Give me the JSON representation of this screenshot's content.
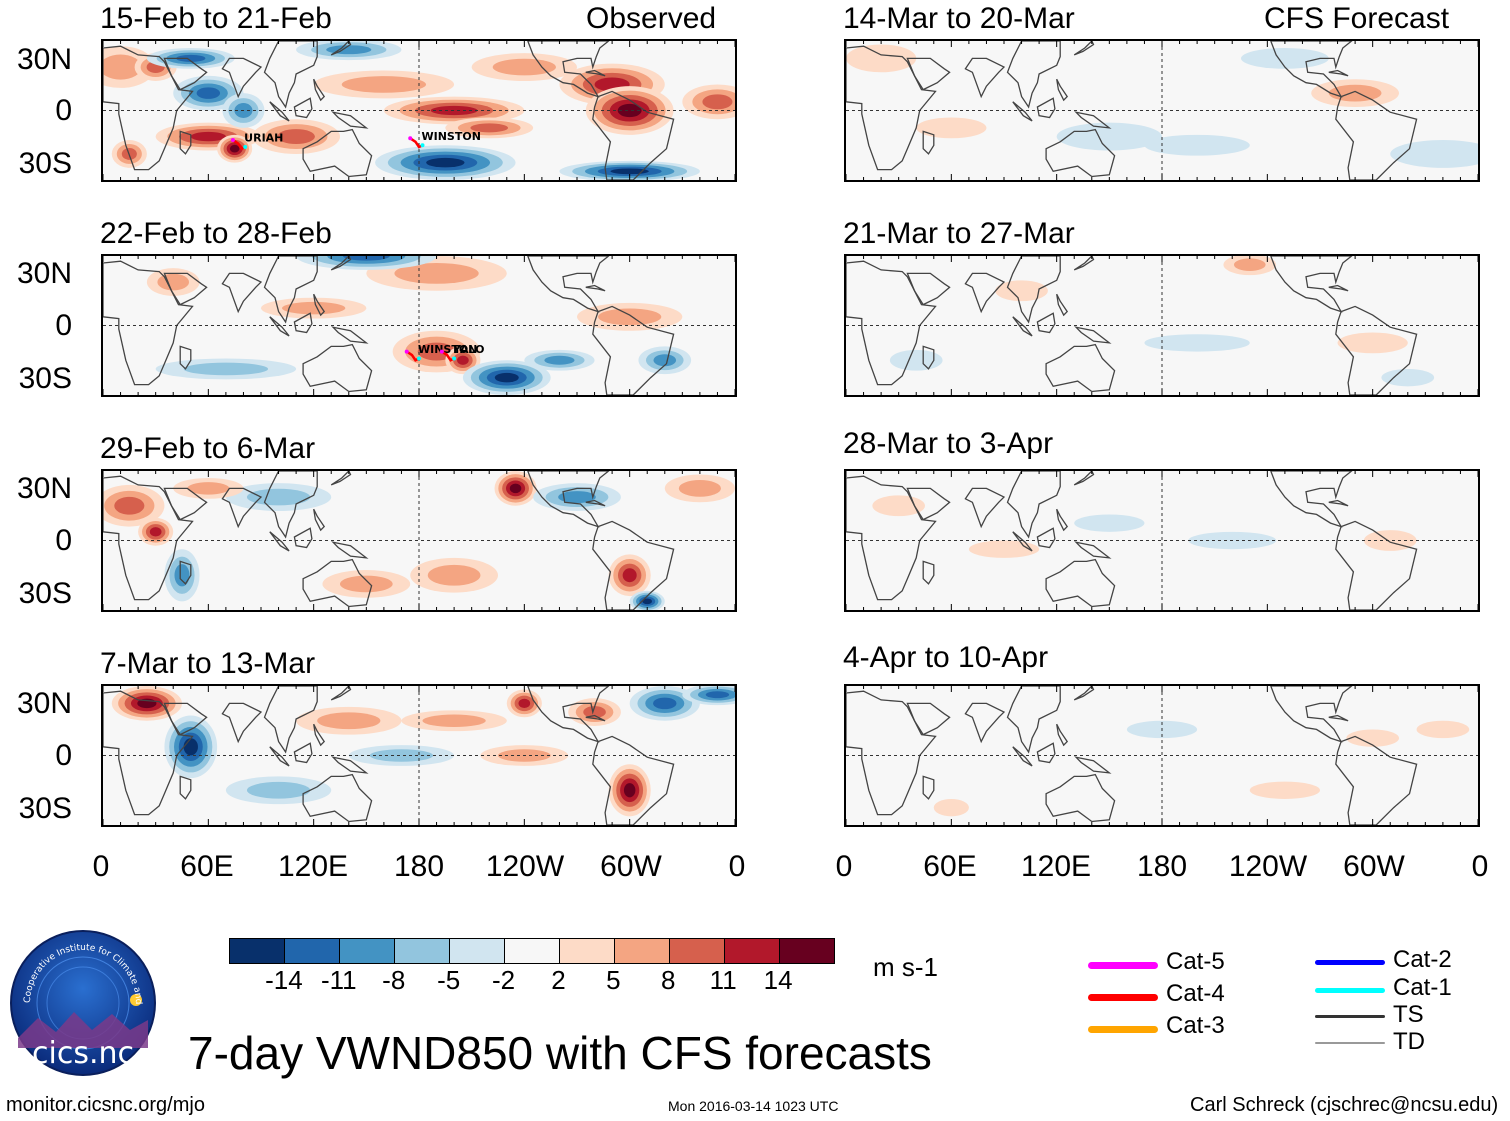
{
  "title": "7-day VWND850 with CFS forecasts",
  "column_headers": {
    "observed": "Observed",
    "forecast": "CFS Forecast"
  },
  "lat_labels": [
    "30N",
    "0",
    "30S"
  ],
  "lon_labels": [
    "0",
    "60E",
    "120E",
    "180",
    "120W",
    "60W",
    "0"
  ],
  "panels": [
    {
      "date_range": "15-Feb to 21-Feb",
      "kind": "observed",
      "storms": [
        "URIAH",
        "WINSTON"
      ]
    },
    {
      "date_range": "22-Feb to 28-Feb",
      "kind": "observed",
      "storms": [
        "WINSTON",
        "YALO"
      ]
    },
    {
      "date_range": "29-Feb to 6-Mar",
      "kind": "observed",
      "storms": []
    },
    {
      "date_range": "7-Mar to 13-Mar",
      "kind": "observed",
      "storms": []
    },
    {
      "date_range": "14-Mar to 20-Mar",
      "kind": "forecast",
      "storms": []
    },
    {
      "date_range": "21-Mar to 27-Mar",
      "kind": "forecast",
      "storms": []
    },
    {
      "date_range": "28-Mar to 3-Apr",
      "kind": "forecast",
      "storms": []
    },
    {
      "date_range": "4-Apr to 10-Apr",
      "kind": "forecast",
      "storms": []
    }
  ],
  "colorbar": {
    "colors": [
      "#08306b",
      "#2166ac",
      "#4393c3",
      "#92c5de",
      "#d1e5f0",
      "#f7f7f7",
      "#fddbc7",
      "#f4a582",
      "#d6604d",
      "#b2182b",
      "#67001f"
    ],
    "labels": [
      "-14",
      "-11",
      "-8",
      "-5",
      "-2",
      "2",
      "5",
      "8",
      "11",
      "14"
    ],
    "units": "m s-1"
  },
  "storm_legend": [
    {
      "label": "Cat-5",
      "color": "#ff00ff"
    },
    {
      "label": "Cat-4",
      "color": "#ff0000"
    },
    {
      "label": "Cat-3",
      "color": "#ffa500"
    },
    {
      "label": "Cat-2",
      "color": "#0000ff"
    },
    {
      "label": "Cat-1",
      "color": "#00ffff"
    },
    {
      "label": "TS",
      "color": "#333333"
    },
    {
      "label": "TD",
      "color": "#999999"
    }
  ],
  "logo": {
    "text": "cics.nc",
    "ring_text": "Cooperative Institute for Climate and Satellites"
  },
  "footer": {
    "left": "monitor.cicsnc.org/mjo",
    "center": "Mon 2016-03-14 1023 UTC",
    "right": "Carl Schreck (cjschrec@ncsu.edu)"
  }
}
